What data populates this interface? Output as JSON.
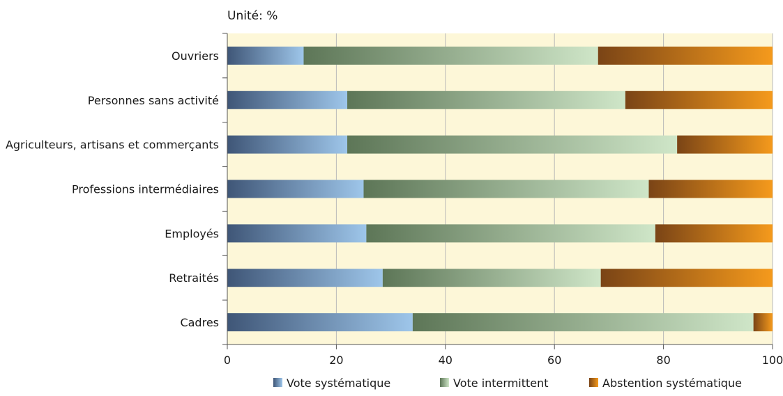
{
  "chart_data": {
    "type": "bar",
    "orientation": "horizontal",
    "stacked": true,
    "unit_label": "Unité: %",
    "categories": [
      "Ouvriers",
      "Personnes sans activité",
      "Agriculteurs, artisans et commerçants",
      "Professions intermédiaires",
      "Employés",
      "Retraités",
      "Cadres"
    ],
    "series": [
      {
        "name": "Vote systématique",
        "values": [
          14,
          22,
          22,
          25,
          25.5,
          28.5,
          34
        ],
        "color_dark": "#3f5677",
        "color_light": "#9ec6ea"
      },
      {
        "name": "Vote intermittent",
        "values": [
          54,
          51,
          60.5,
          52.3,
          53,
          40,
          62.5
        ],
        "color_dark": "#5d7657",
        "color_light": "#cfe6c8"
      },
      {
        "name": "Abstention systématique",
        "values": [
          32,
          27,
          17.5,
          22.7,
          21.5,
          31.5,
          3.5
        ],
        "color_dark": "#7a4416",
        "color_light": "#f59a1c"
      }
    ],
    "xlim": [
      0,
      100
    ],
    "xticks": [
      "0",
      "20",
      "40",
      "60",
      "80",
      "100"
    ],
    "grid": true,
    "legend_position": "bottom",
    "plot_background": "#fdf7d8"
  }
}
